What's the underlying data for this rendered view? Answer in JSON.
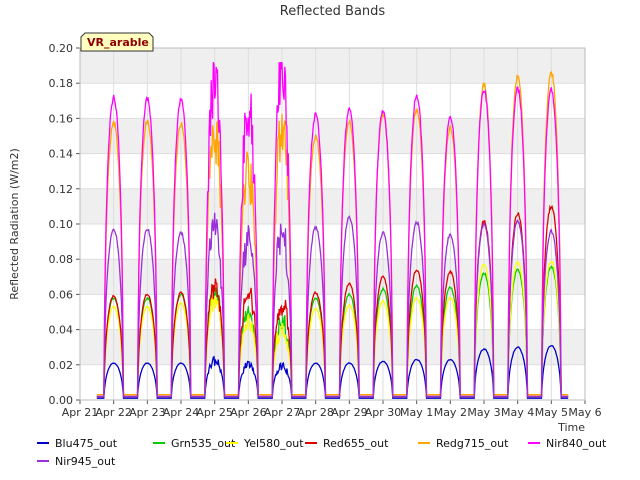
{
  "chart_data": {
    "type": "line",
    "title": "Reflected Bands",
    "xlabel": "Time",
    "ylabel": "Reflected Radiation (W/m2)",
    "annotation": "VR_arable",
    "x_ticks": [
      "Apr 21",
      "Apr 22",
      "Apr 23",
      "Apr 24",
      "Apr 25",
      "Apr 26",
      "Apr 27",
      "Apr 28",
      "Apr 29",
      "Apr 30",
      "May 1",
      "May 2",
      "May 3",
      "May 4",
      "May 5",
      "May 6"
    ],
    "y_ticks": [
      "0.00",
      "0.02",
      "0.04",
      "0.06",
      "0.08",
      "0.10",
      "0.12",
      "0.14",
      "0.16",
      "0.18",
      "0.20"
    ],
    "ylim": [
      0,
      0.2
    ],
    "grid": true,
    "legend_position": "bottom",
    "days": [
      "Apr 21",
      "Apr 22",
      "Apr 23",
      "Apr 24",
      "Apr 25",
      "Apr 26",
      "Apr 27",
      "Apr 28",
      "Apr 29",
      "Apr 30",
      "May 1",
      "May 2",
      "May 3",
      "May 4",
      "May 5"
    ],
    "series": [
      {
        "name": "Blu475_out",
        "color": "#0000cc",
        "night": 0.001,
        "daily_peak": [
          0.021,
          0.021,
          0.021,
          0.022,
          0.02,
          0.019,
          0.021,
          0.021,
          0.022,
          0.023,
          0.023,
          0.029,
          0.03,
          0.031
        ]
      },
      {
        "name": "Grn535_out",
        "color": "#00cc00",
        "night": 0.002,
        "daily_peak": [
          0.058,
          0.058,
          0.06,
          0.06,
          0.05,
          0.045,
          0.058,
          0.06,
          0.063,
          0.065,
          0.064,
          0.072,
          0.074,
          0.076
        ]
      },
      {
        "name": "Yel580_out",
        "color": "#ffff00",
        "night": 0.002,
        "daily_peak": [
          0.053,
          0.053,
          0.055,
          0.055,
          0.045,
          0.04,
          0.052,
          0.054,
          0.056,
          0.058,
          0.058,
          0.077,
          0.078,
          0.079
        ]
      },
      {
        "name": "Red655_out",
        "color": "#dd0000",
        "night": 0.002,
        "daily_peak": [
          0.059,
          0.06,
          0.061,
          0.062,
          0.06,
          0.055,
          0.061,
          0.066,
          0.07,
          0.074,
          0.073,
          0.102,
          0.106,
          0.11
        ]
      },
      {
        "name": "Redg715_out",
        "color": "#ffa500",
        "night": 0.003,
        "daily_peak": [
          0.158,
          0.159,
          0.157,
          0.15,
          0.13,
          0.15,
          0.15,
          0.158,
          0.162,
          0.165,
          0.155,
          0.179,
          0.183,
          0.186
        ]
      },
      {
        "name": "Nir840_out",
        "color": "#ff00ff",
        "night": 0.002,
        "daily_peak": [
          0.172,
          0.171,
          0.17,
          0.178,
          0.165,
          0.18,
          0.162,
          0.165,
          0.164,
          0.173,
          0.161,
          0.176,
          0.177,
          0.176
        ]
      },
      {
        "name": "Nir945_out",
        "color": "#9b30d9",
        "night": 0.002,
        "daily_peak": [
          0.097,
          0.097,
          0.095,
          0.098,
          0.09,
          0.095,
          0.098,
          0.104,
          0.095,
          0.101,
          0.094,
          0.1,
          0.102,
          0.096
        ]
      }
    ]
  }
}
